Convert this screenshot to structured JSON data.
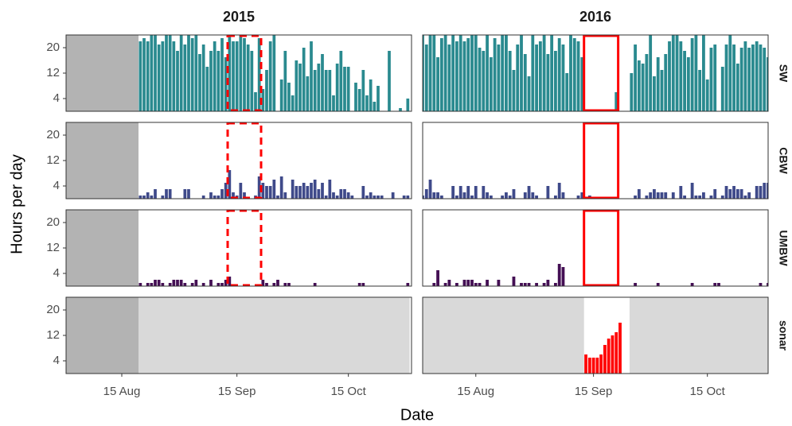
{
  "chart_data": {
    "type": "bar",
    "x_label": "Date",
    "y_label": "Hours per day",
    "ylim": [
      0,
      24
    ],
    "yticks": [
      4,
      12,
      20
    ],
    "columns": [
      {
        "title": "2015",
        "xlim": [
          "2015-07-31",
          "2015-11-01"
        ],
        "xticks": [
          {
            "value": "2015-08-15",
            "label": "15 Aug"
          },
          {
            "value": "2015-09-15",
            "label": "15 Sep"
          },
          {
            "value": "2015-10-15",
            "label": "15 Oct"
          }
        ],
        "highlight": {
          "from": "2015-09-13",
          "to": "2015-09-21",
          "dashed": true
        },
        "dates": [
          "2015-08-20",
          "2015-08-21",
          "2015-08-22",
          "2015-08-23",
          "2015-08-24",
          "2015-08-25",
          "2015-08-26",
          "2015-08-27",
          "2015-08-28",
          "2015-08-29",
          "2015-08-30",
          "2015-08-31",
          "2015-09-01",
          "2015-09-02",
          "2015-09-03",
          "2015-09-04",
          "2015-09-05",
          "2015-09-06",
          "2015-09-07",
          "2015-09-08",
          "2015-09-09",
          "2015-09-10",
          "2015-09-11",
          "2015-09-12",
          "2015-09-13",
          "2015-09-14",
          "2015-09-15",
          "2015-09-16",
          "2015-09-17",
          "2015-09-18",
          "2015-09-19",
          "2015-09-20",
          "2015-09-21",
          "2015-09-22",
          "2015-09-23",
          "2015-09-24",
          "2015-09-25",
          "2015-09-26",
          "2015-09-27",
          "2015-09-28",
          "2015-09-29",
          "2015-09-30",
          "2015-10-01",
          "2015-10-02",
          "2015-10-03",
          "2015-10-04",
          "2015-10-05",
          "2015-10-06",
          "2015-10-07",
          "2015-10-08",
          "2015-10-09",
          "2015-10-10",
          "2015-10-11",
          "2015-10-12",
          "2015-10-13",
          "2015-10-14",
          "2015-10-15",
          "2015-10-16",
          "2015-10-17",
          "2015-10-18",
          "2015-10-19",
          "2015-10-20",
          "2015-10-21",
          "2015-10-22",
          "2015-10-23",
          "2015-10-24",
          "2015-10-25",
          "2015-10-26",
          "2015-10-27",
          "2015-10-28",
          "2015-10-29",
          "2015-10-30",
          "2015-10-31"
        ]
      },
      {
        "title": "2016",
        "xlim": [
          "2016-08-01",
          "2016-10-31"
        ],
        "xticks": [
          {
            "value": "2016-08-15",
            "label": "15 Aug"
          },
          {
            "value": "2016-09-15",
            "label": "15 Sep"
          },
          {
            "value": "2016-10-15",
            "label": "15 Oct"
          }
        ],
        "highlight": {
          "from": "2016-09-13",
          "to": "2016-09-21",
          "dashed": false
        },
        "dates": [
          "2016-08-01",
          "2016-08-02",
          "2016-08-03",
          "2016-08-04",
          "2016-08-05",
          "2016-08-06",
          "2016-08-07",
          "2016-08-08",
          "2016-08-09",
          "2016-08-10",
          "2016-08-11",
          "2016-08-12",
          "2016-08-13",
          "2016-08-14",
          "2016-08-15",
          "2016-08-16",
          "2016-08-17",
          "2016-08-18",
          "2016-08-19",
          "2016-08-20",
          "2016-08-21",
          "2016-08-22",
          "2016-08-23",
          "2016-08-24",
          "2016-08-25",
          "2016-08-26",
          "2016-08-27",
          "2016-08-28",
          "2016-08-29",
          "2016-08-30",
          "2016-08-31",
          "2016-09-01",
          "2016-09-02",
          "2016-09-03",
          "2016-09-04",
          "2016-09-05",
          "2016-09-06",
          "2016-09-07",
          "2016-09-08",
          "2016-09-09",
          "2016-09-10",
          "2016-09-11",
          "2016-09-12",
          "2016-09-13",
          "2016-09-14",
          "2016-09-15",
          "2016-09-16",
          "2016-09-17",
          "2016-09-18",
          "2016-09-19",
          "2016-09-20",
          "2016-09-21",
          "2016-09-22",
          "2016-09-23",
          "2016-09-24",
          "2016-09-25",
          "2016-09-26",
          "2016-09-27",
          "2016-09-28",
          "2016-09-29",
          "2016-09-30",
          "2016-10-01",
          "2016-10-02",
          "2016-10-03",
          "2016-10-04",
          "2016-10-05",
          "2016-10-06",
          "2016-10-07",
          "2016-10-08",
          "2016-10-09",
          "2016-10-10",
          "2016-10-11",
          "2016-10-12",
          "2016-10-13",
          "2016-10-14",
          "2016-10-15",
          "2016-10-16",
          "2016-10-17",
          "2016-10-18",
          "2016-10-19",
          "2016-10-20",
          "2016-10-21",
          "2016-10-22",
          "2016-10-23",
          "2016-10-24",
          "2016-10-25",
          "2016-10-26",
          "2016-10-27",
          "2016-10-28",
          "2016-10-29",
          "2016-10-30",
          "2016-10-31"
        ]
      }
    ],
    "rows": [
      {
        "name": "SW",
        "color": "#2a8a8f",
        "highlight": true,
        "values": [
          [
            22,
            23,
            22,
            24,
            24,
            21,
            22,
            24,
            24,
            22,
            19,
            24,
            21,
            24,
            23,
            24,
            18,
            21,
            14,
            19,
            22,
            19,
            23,
            17,
            24,
            22,
            22,
            24,
            23,
            21,
            19,
            6,
            23,
            7,
            13,
            22,
            24,
            0,
            10,
            19,
            9,
            5,
            16,
            15,
            20,
            11,
            22,
            13,
            15,
            18,
            13,
            13,
            5,
            15,
            19,
            14,
            14,
            0,
            9,
            7,
            13,
            5,
            10,
            3,
            8,
            0,
            0,
            19,
            0,
            0,
            1,
            0,
            4
          ],
          [
            24,
            21,
            24,
            24,
            17,
            23,
            24,
            21,
            24,
            22,
            24,
            22,
            23,
            24,
            24,
            20,
            19,
            24,
            17,
            23,
            21,
            24,
            24,
            19,
            13,
            21,
            24,
            18,
            11,
            24,
            21,
            22,
            24,
            18,
            24,
            19,
            23,
            21,
            12,
            24,
            23,
            22,
            17,
            0,
            0,
            0,
            0,
            0,
            0,
            0,
            0,
            6,
            0,
            0,
            0,
            12,
            21,
            16,
            15,
            18,
            24,
            11,
            17,
            13,
            18,
            22,
            24,
            24,
            22,
            19,
            17,
            23,
            24,
            13,
            24,
            10,
            20,
            21,
            0,
            14,
            21,
            24,
            21,
            15,
            20,
            22,
            20,
            21,
            22,
            21,
            20,
            17
          ]
        ]
      },
      {
        "name": "CBW",
        "color": "#3f4a8a",
        "highlight": true,
        "values": [
          [
            1,
            1,
            2,
            1,
            3,
            0,
            1,
            3,
            3,
            0,
            0,
            0,
            3,
            3,
            0,
            0,
            0,
            1,
            0,
            2,
            1,
            1,
            3,
            5,
            9,
            2,
            1,
            5,
            2,
            0,
            0,
            1,
            7,
            5,
            4,
            4,
            6,
            1,
            7,
            2,
            0,
            6,
            4,
            4,
            5,
            4,
            5,
            6,
            3,
            5,
            1,
            6,
            2,
            1,
            3,
            3,
            2,
            1,
            0,
            0,
            4,
            1,
            2,
            1,
            1,
            1,
            0,
            0,
            2,
            0,
            0,
            1,
            1
          ],
          [
            1,
            3,
            6,
            2,
            2,
            1,
            0,
            0,
            4,
            1,
            4,
            2,
            4,
            1,
            4,
            0,
            4,
            2,
            1,
            0,
            0,
            1,
            2,
            1,
            3,
            0,
            0,
            2,
            4,
            2,
            1,
            0,
            0,
            4,
            0,
            1,
            5,
            2,
            0,
            0,
            0,
            1,
            2,
            0,
            1,
            0,
            0,
            0,
            0,
            0,
            0,
            0,
            0,
            0,
            0,
            0,
            1,
            3,
            0,
            1,
            2,
            3,
            2,
            2,
            2,
            0,
            2,
            0,
            4,
            1,
            0,
            5,
            1,
            1,
            2,
            0,
            1,
            3,
            0,
            1,
            4,
            3,
            4,
            3,
            3,
            1,
            2,
            0,
            4,
            4,
            5,
            5
          ]
        ]
      },
      {
        "name": "UMBW",
        "color": "#440f54",
        "highlight": true,
        "values": [
          [
            1,
            0,
            1,
            1,
            2,
            2,
            1,
            0,
            1,
            2,
            2,
            2,
            1,
            0,
            1,
            2,
            0,
            1,
            0,
            2,
            0,
            1,
            1,
            2,
            3,
            0,
            0,
            0,
            0,
            0,
            0,
            0,
            0,
            2,
            1,
            0,
            1,
            2,
            0,
            1,
            1,
            0,
            0,
            0,
            0,
            0,
            0,
            1,
            0,
            0,
            0,
            0,
            0,
            0,
            0,
            0,
            0,
            0,
            0,
            1,
            1,
            0,
            0,
            0,
            0,
            0,
            0,
            0,
            0,
            0,
            0,
            0,
            1
          ],
          [
            0,
            0,
            0,
            1,
            5,
            0,
            1,
            2,
            0,
            1,
            0,
            2,
            2,
            2,
            1,
            1,
            0,
            2,
            0,
            0,
            2,
            0,
            0,
            0,
            3,
            0,
            1,
            1,
            1,
            0,
            1,
            0,
            1,
            2,
            0,
            1,
            7,
            6,
            0,
            0,
            0,
            0,
            0,
            0,
            0,
            0,
            0,
            0,
            0,
            0,
            0,
            0,
            0,
            0,
            0,
            0,
            1,
            0,
            0,
            0,
            0,
            0,
            1,
            0,
            0,
            0,
            0,
            0,
            0,
            0,
            0,
            1,
            0,
            0,
            0,
            0,
            0,
            1,
            1,
            0,
            0,
            0,
            0,
            0,
            0,
            0,
            0,
            0,
            0,
            1,
            0,
            1
          ]
        ]
      },
      {
        "name": "sonar",
        "color": "#ff0000",
        "highlight": false,
        "values": [
          [
            null,
            null,
            null,
            null,
            null,
            null,
            null,
            null,
            null,
            null,
            null,
            null,
            null,
            null,
            null,
            null,
            null,
            null,
            null,
            null,
            null,
            null,
            null,
            null,
            null,
            null,
            null,
            null,
            null,
            null,
            null,
            null,
            null,
            null,
            null,
            null,
            null,
            null,
            null,
            null,
            null,
            null,
            null,
            null,
            null,
            null,
            null,
            null,
            null,
            null,
            null,
            null,
            null,
            null,
            null,
            null,
            null,
            null,
            null,
            null,
            null,
            null,
            null,
            null,
            null,
            null,
            null,
            null,
            null,
            null,
            null,
            null,
            null
          ],
          [
            null,
            null,
            null,
            null,
            null,
            null,
            null,
            null,
            null,
            null,
            null,
            null,
            null,
            null,
            null,
            null,
            null,
            null,
            null,
            null,
            null,
            null,
            null,
            null,
            null,
            null,
            null,
            null,
            null,
            null,
            null,
            null,
            null,
            null,
            null,
            null,
            null,
            null,
            null,
            null,
            null,
            null,
            null,
            6,
            5,
            5,
            5,
            6,
            9,
            11,
            12,
            13,
            16,
            0,
            0,
            null,
            null,
            null,
            null,
            null,
            null,
            null,
            null,
            null,
            null,
            null,
            null,
            null,
            null,
            null,
            null,
            null,
            null,
            null,
            null,
            null,
            null,
            null,
            null,
            null,
            null,
            null,
            null,
            null,
            null,
            null,
            null,
            null,
            null,
            null,
            null,
            null
          ]
        ]
      }
    ]
  }
}
